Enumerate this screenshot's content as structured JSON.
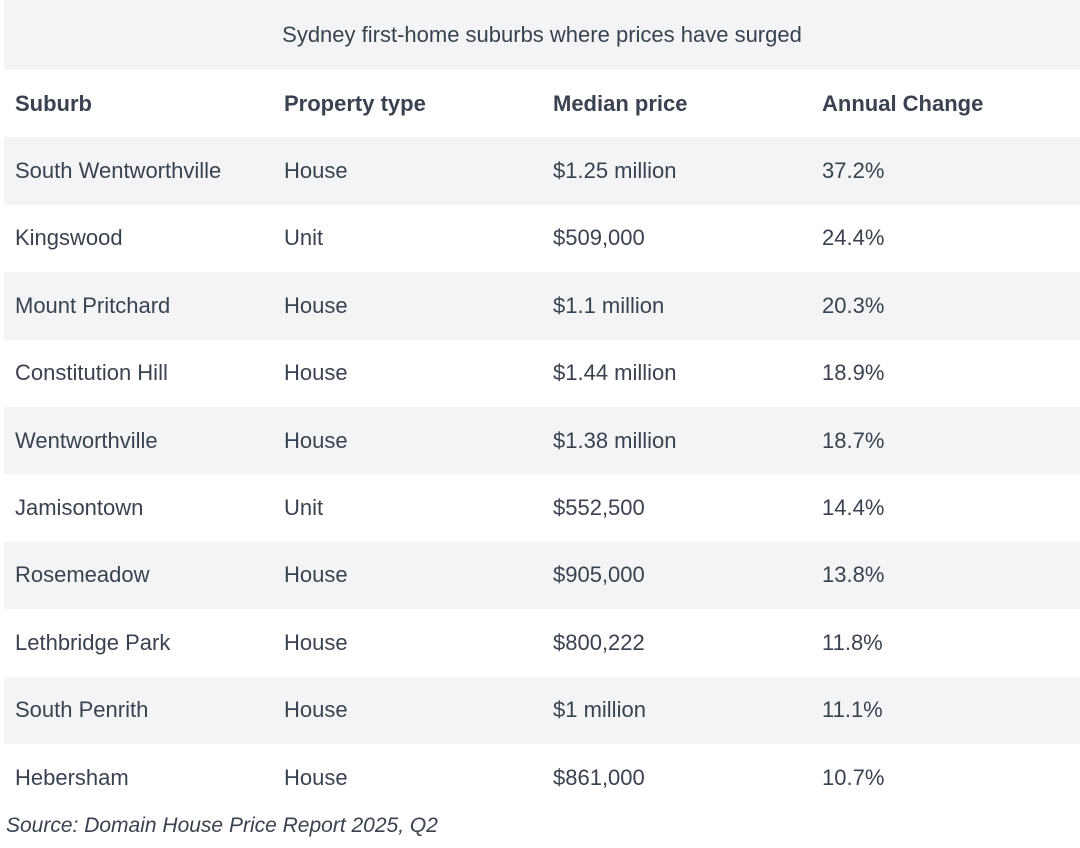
{
  "title": "Sydney first-home suburbs where prices have surged",
  "table": {
    "headers": [
      "Suburb",
      "Property type",
      "Median price",
      "Annual Change"
    ],
    "rows": [
      [
        "South Wentworthville",
        "House",
        "$1.25 million",
        "37.2%"
      ],
      [
        "Kingswood",
        "Unit",
        "$509,000",
        "24.4%"
      ],
      [
        "Mount Pritchard",
        "House",
        "$1.1 million",
        "20.3%"
      ],
      [
        "Constitution Hill",
        "House",
        "$1.44 million",
        "18.9%"
      ],
      [
        "Wentworthville",
        "House",
        "$1.38 million",
        "18.7%"
      ],
      [
        "Jamisontown",
        "Unit",
        "$552,500",
        "14.4%"
      ],
      [
        "Rosemeadow",
        "House",
        "$905,000",
        "13.8%"
      ],
      [
        "Lethbridge Park",
        "House",
        "$800,222",
        "11.8%"
      ],
      [
        "South Penrith",
        "House",
        "$1 million",
        "11.1%"
      ],
      [
        "Hebersham",
        "House",
        "$861,000",
        "10.7%"
      ]
    ]
  },
  "source": "Source: Domain House Price Report 2025, Q2"
}
